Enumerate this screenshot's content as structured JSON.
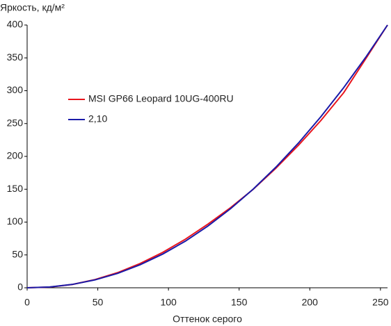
{
  "chart_data": {
    "type": "line",
    "y_axis_label": "Яркость, кд/м²",
    "x_axis_label": "Оттенок серого",
    "x": [
      0,
      16,
      32,
      48,
      64,
      80,
      96,
      112,
      128,
      144,
      160,
      176,
      192,
      208,
      224,
      240,
      255
    ],
    "series": [
      {
        "name": "MSI GP66 Leopard 10UG-400RU",
        "color": "#e8141c",
        "values": [
          0,
          1,
          5,
          12.5,
          23,
          37,
          54,
          74,
          97,
          122,
          150,
          182,
          217,
          255,
          297,
          350,
          400
        ]
      },
      {
        "name": "2,10",
        "color": "#1a1aa8",
        "values": [
          0,
          1.2,
          5.1,
          12,
          21.9,
          35.1,
          51.4,
          71,
          94.1,
          120.5,
          150.3,
          183.6,
          220.4,
          260.8,
          304.7,
          352.2,
          400
        ]
      }
    ],
    "xlim": [
      0,
      255
    ],
    "xticks": [
      0,
      50,
      100,
      150,
      200,
      250
    ],
    "ylim": [
      0,
      400
    ],
    "yticks": [
      0,
      50,
      100,
      150,
      200,
      250,
      300,
      350,
      400
    ],
    "grid": false,
    "legend": "upper left"
  }
}
